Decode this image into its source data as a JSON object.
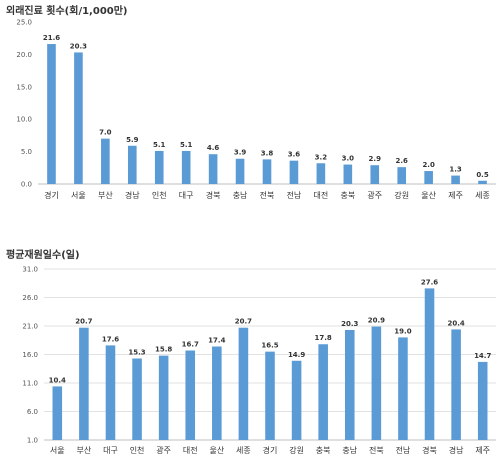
{
  "chart_data": [
    {
      "type": "bar",
      "title": "외래진료 횟수(회/1,000만)",
      "categories": [
        "경기",
        "서울",
        "부산",
        "경남",
        "인천",
        "대구",
        "경북",
        "충남",
        "전북",
        "전남",
        "대전",
        "충북",
        "광주",
        "강원",
        "울산",
        "제주",
        "세종"
      ],
      "values": [
        21.6,
        20.3,
        7.0,
        5.9,
        5.1,
        5.1,
        4.6,
        3.9,
        3.8,
        3.6,
        3.2,
        3.0,
        2.9,
        2.6,
        2.0,
        1.3,
        0.5
      ],
      "value_labels": [
        "21.6",
        "20.3",
        "7.0",
        "5.9",
        "5.1",
        "5.1",
        "4.6",
        "3.9",
        "3.8",
        "3.6",
        "3.2",
        "3.0",
        "2.9",
        "2.6",
        "2.0",
        "1.3",
        "0.5"
      ],
      "y_ticks": [
        "0.0",
        "5.0",
        "10.0",
        "15.0",
        "20.0",
        "25.0"
      ],
      "ylim": [
        0,
        25
      ],
      "grid": false,
      "bar_color": "#5b9bd5"
    },
    {
      "type": "bar",
      "title": "평균재원일수(일)",
      "categories": [
        "서울",
        "부산",
        "대구",
        "인천",
        "광주",
        "대전",
        "울산",
        "세종",
        "경기",
        "강원",
        "충북",
        "충남",
        "전북",
        "전남",
        "경북",
        "경남",
        "제주"
      ],
      "values": [
        10.4,
        20.7,
        17.6,
        15.3,
        15.8,
        16.7,
        17.4,
        20.7,
        16.5,
        14.9,
        17.8,
        20.3,
        20.9,
        19.0,
        27.6,
        20.4,
        14.7
      ],
      "value_labels": [
        "10.4",
        "20.7",
        "17.6",
        "15.3",
        "15.8",
        "16.7",
        "17.4",
        "20.7",
        "16.5",
        "14.9",
        "17.8",
        "20.3",
        "20.9",
        "19.0",
        "27.6",
        "20.4",
        "14.7"
      ],
      "y_ticks": [
        "1.0",
        "6.0",
        "11.0",
        "16.0",
        "21.0",
        "26.0",
        "31.0"
      ],
      "ylim": [
        1,
        31
      ],
      "grid": true,
      "bar_color": "#5b9bd5"
    }
  ]
}
